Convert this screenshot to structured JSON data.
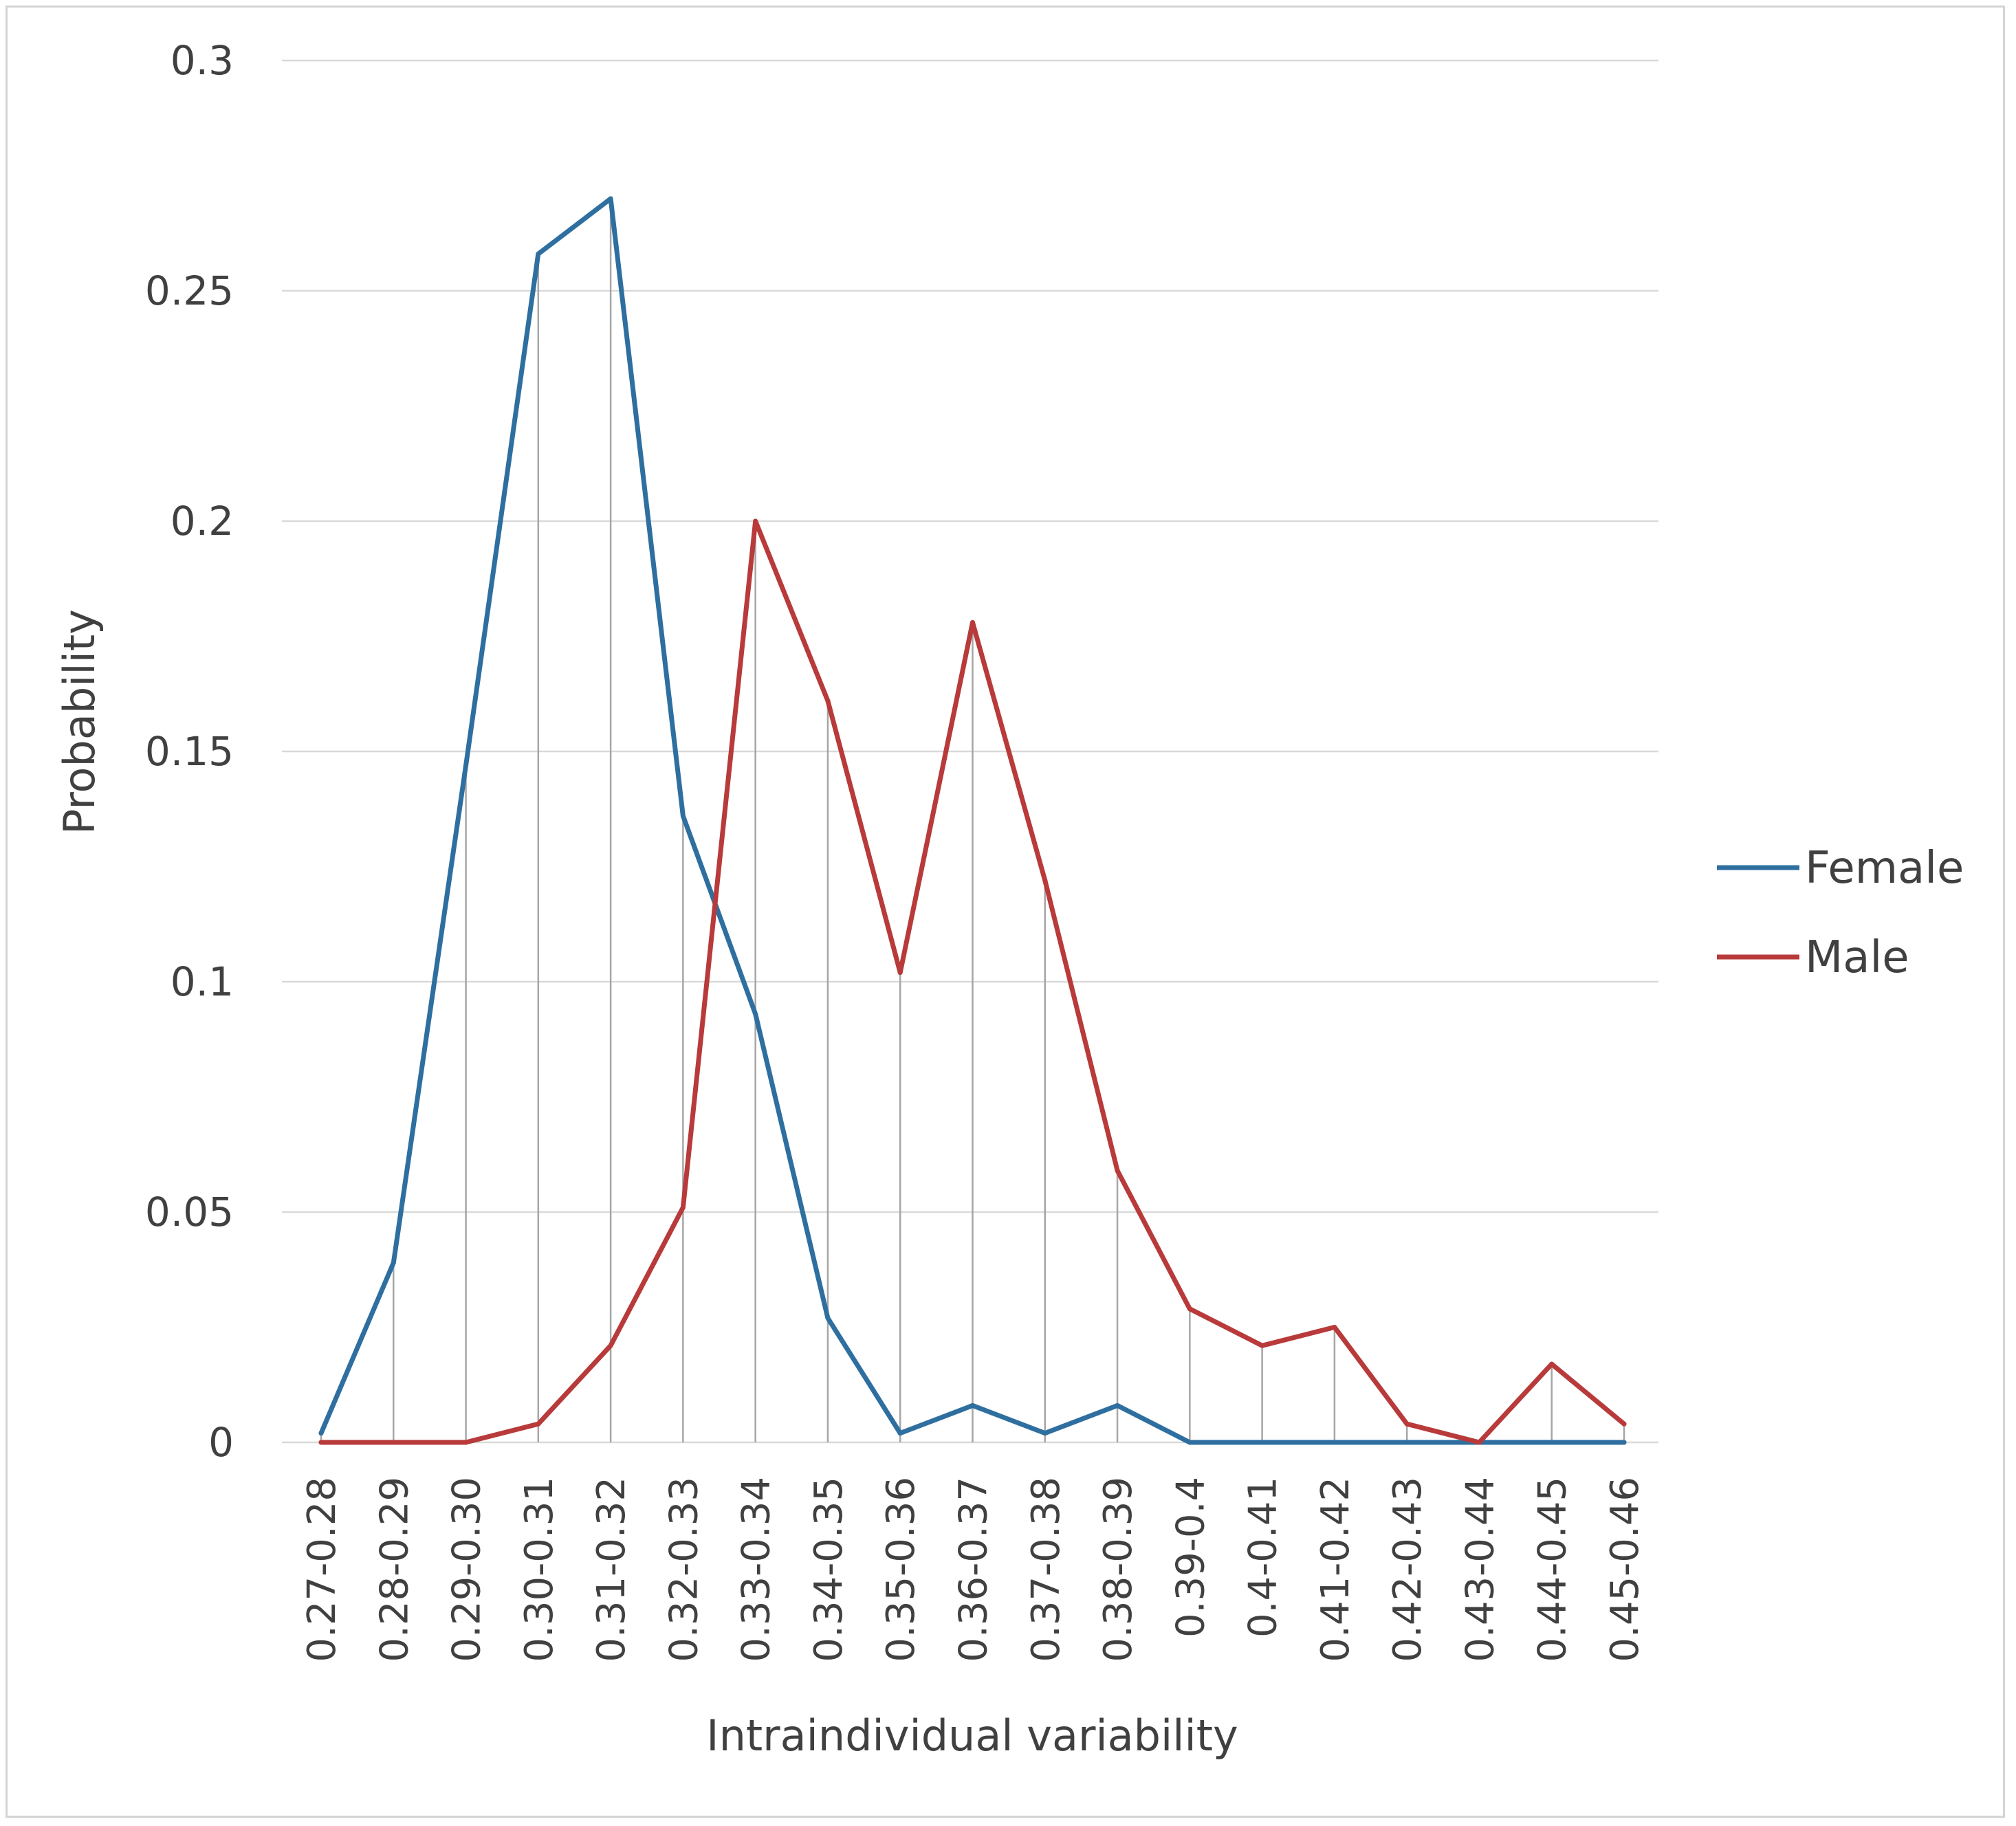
{
  "chart_data": {
    "type": "line",
    "xlabel": "Intraindividual variability",
    "ylabel": "Probability",
    "ylim": [
      0,
      0.3
    ],
    "yticks": [
      "0",
      "0.05",
      "0.1",
      "0.15",
      "0.2",
      "0.25",
      "0.3"
    ],
    "ytick_values": [
      0,
      0.05,
      0.1,
      0.15,
      0.2,
      0.25,
      0.3
    ],
    "grid": "horizontal",
    "drop_lines": true,
    "legend_position": "right",
    "categories": [
      "0.27-0.28",
      "0.28-0.29",
      "0.29-0.30",
      "0.30-0.31",
      "0.31-0.32",
      "0.32-0.33",
      "0.33-0.34",
      "0.34-0.35",
      "0.35-0.36",
      "0.36-0.37",
      "0.37-0.38",
      "0.38-0.39",
      "0.39-0.4",
      "0.4-0.41",
      "0.41-0.42",
      "0.42-0.43",
      "0.43-0.44",
      "0.44-0.45",
      "0.45-0.46"
    ],
    "series": [
      {
        "name": "Female",
        "color": "#2e6fa0",
        "values": [
          0.002,
          0.039,
          0.147,
          0.258,
          0.27,
          0.136,
          0.093,
          0.027,
          0.002,
          0.008,
          0.002,
          0.008,
          0.0,
          0.0,
          0.0,
          0.0,
          0.0,
          0.0,
          0.0
        ]
      },
      {
        "name": "Male",
        "color": "#b83a3a",
        "values": [
          0.0,
          0.0,
          0.0,
          0.004,
          0.021,
          0.051,
          0.2,
          0.161,
          0.102,
          0.178,
          0.122,
          0.059,
          0.029,
          0.021,
          0.025,
          0.004,
          0.0,
          0.017,
          0.004
        ]
      }
    ]
  },
  "colors": {
    "gridline": "#d9d9d9",
    "dropline": "#a6a6a6",
    "text": "#404040"
  }
}
